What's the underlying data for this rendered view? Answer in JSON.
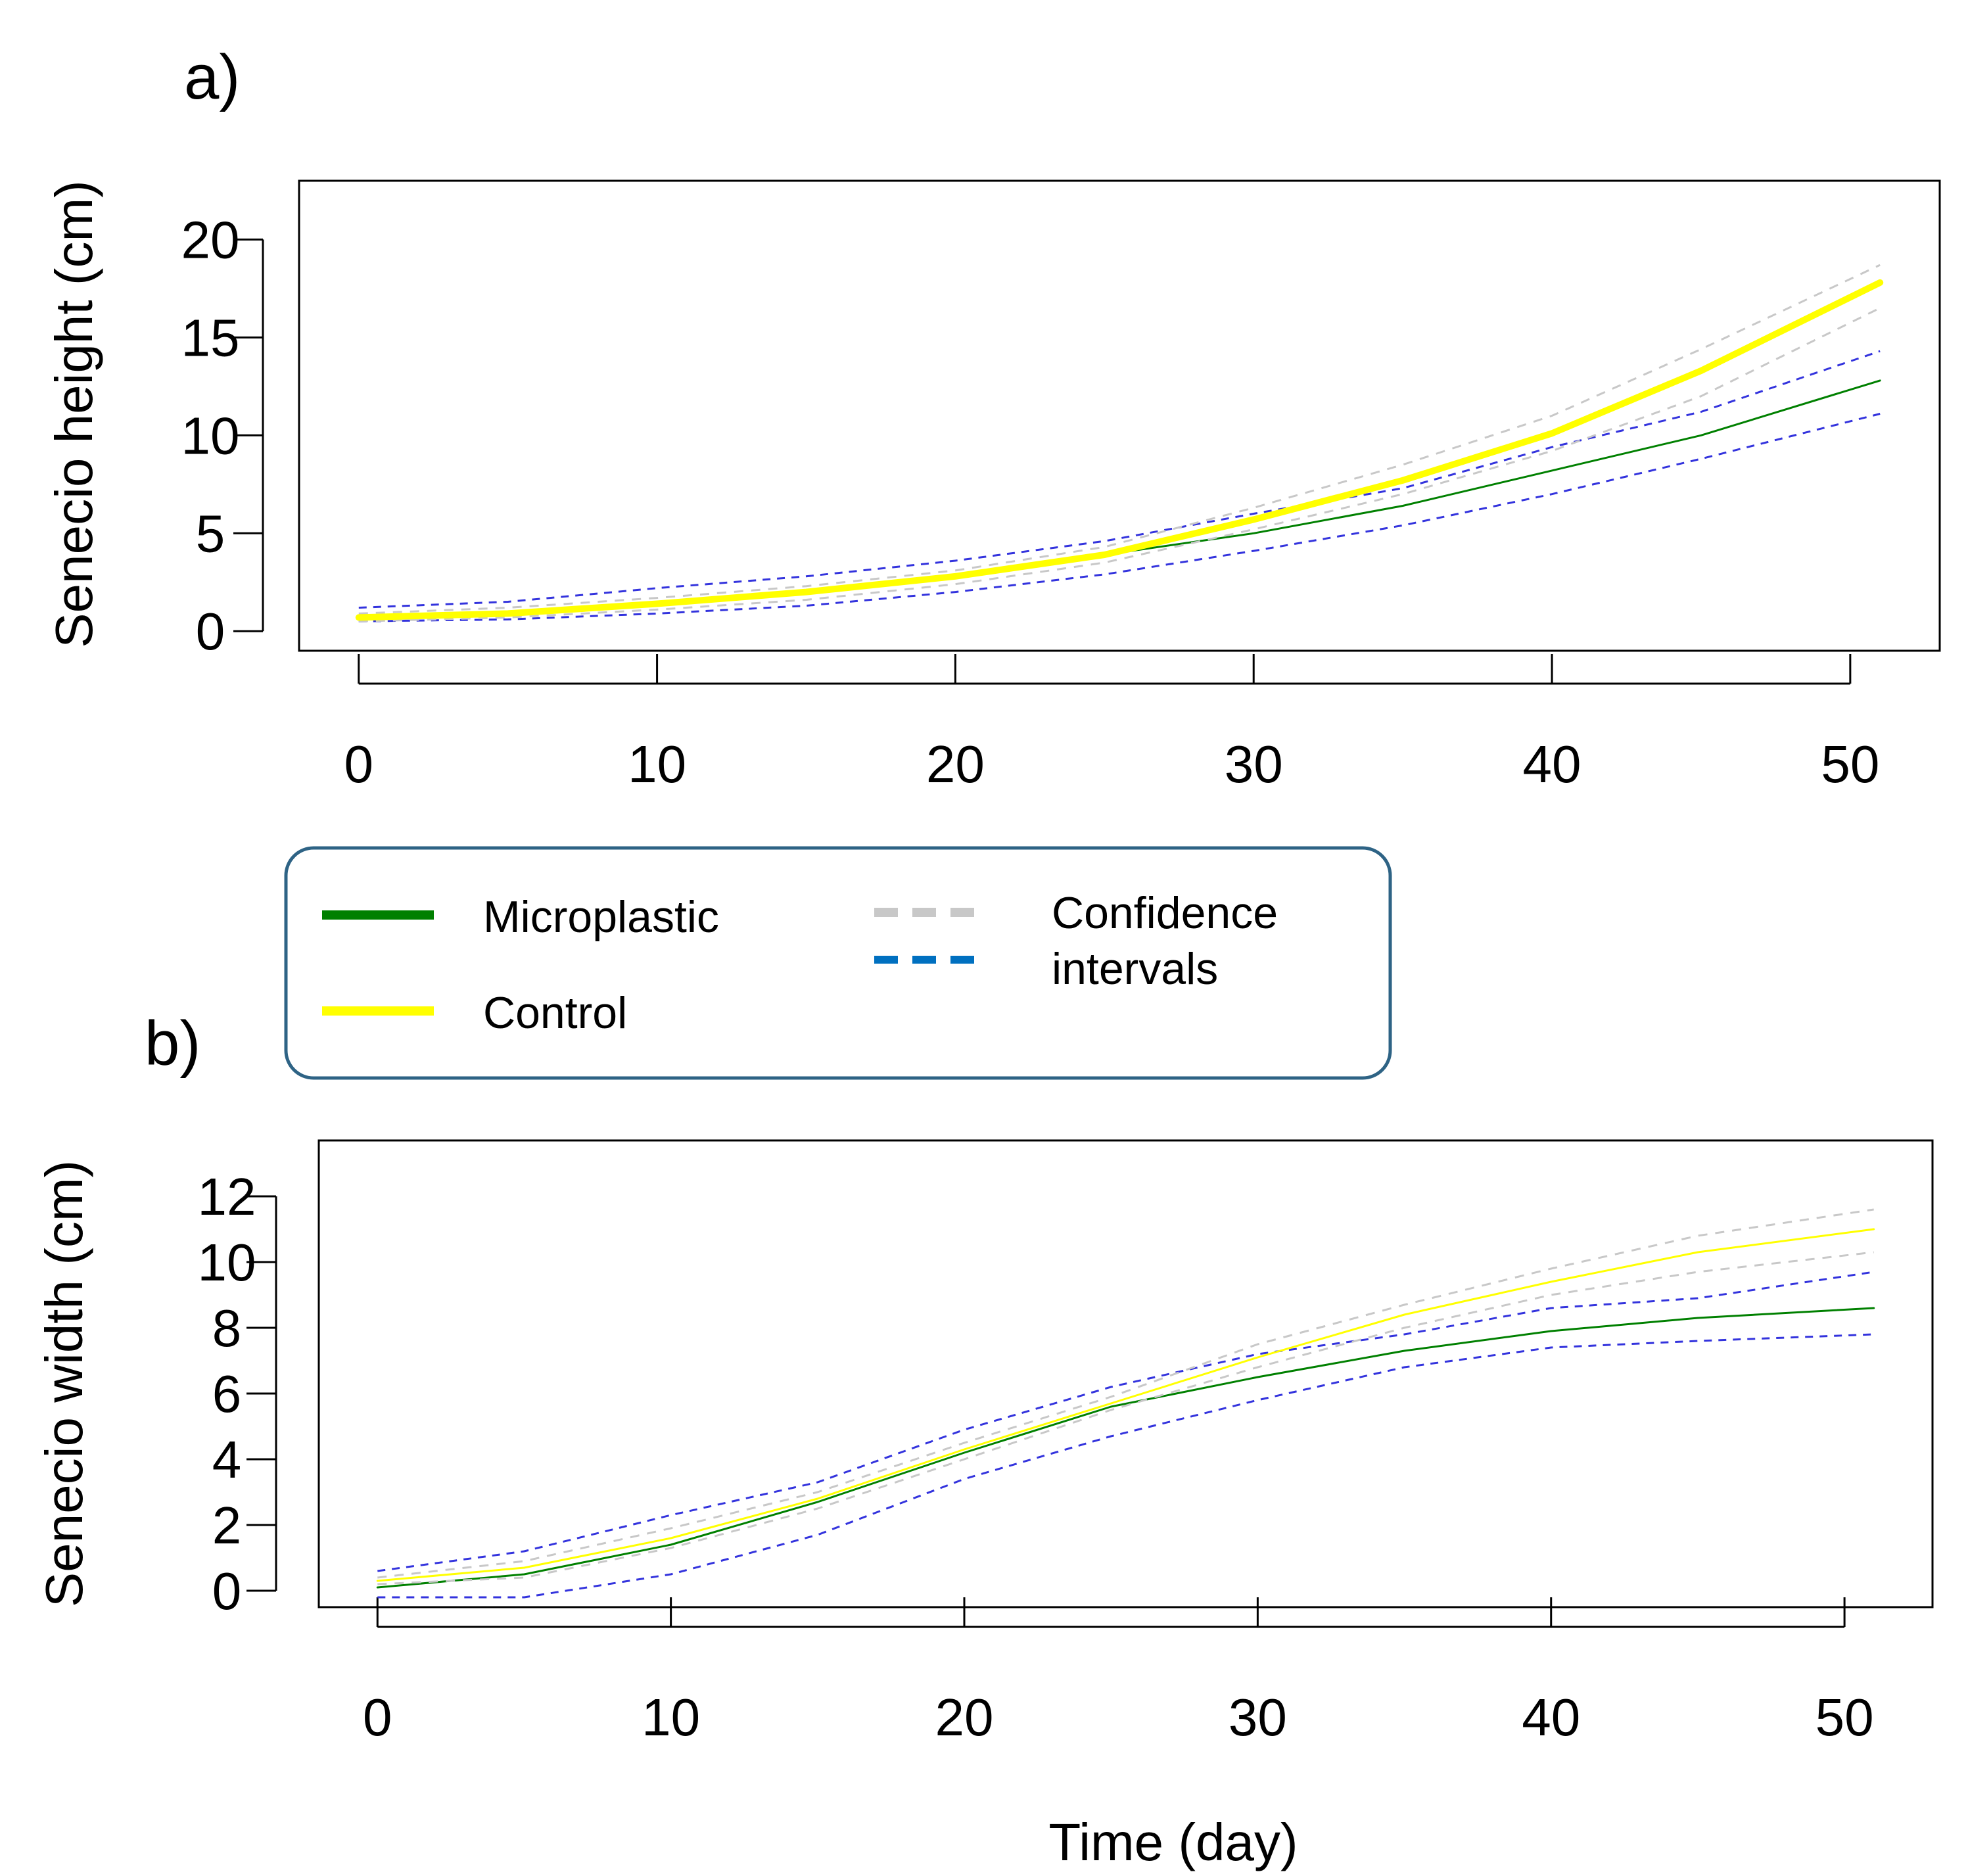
{
  "figure": {
    "xlabel": "Time (day)",
    "legend": {
      "items": [
        {
          "label": "Microplastic",
          "color": "#008000",
          "style": "solid"
        },
        {
          "label": "Control",
          "color": "#ffff00",
          "style": "solid"
        }
      ],
      "ci_label_line1": "Confidence",
      "ci_label_line2": "intervals",
      "ci_colors": [
        "#c8c8c8",
        "#0070c0"
      ]
    }
  },
  "chart_data": [
    {
      "type": "line",
      "panel_label": "a)",
      "title": "",
      "xlabel": "",
      "ylabel": "Senecio height (cm)",
      "xlim": [
        -2,
        53
      ],
      "ylim": [
        -1,
        23
      ],
      "xticks": [
        "0",
        "10",
        "20",
        "30",
        "40",
        "50"
      ],
      "yticks": [
        "0",
        "5",
        "10",
        "15",
        "20"
      ],
      "x": [
        0,
        5,
        10,
        15,
        20,
        25,
        30,
        35,
        40,
        45,
        51
      ],
      "series": [
        {
          "name": "Microplastic",
          "color": "#008000",
          "width": 3,
          "dash": "",
          "values": [
            0.7,
            1.0,
            1.4,
            2.0,
            2.9,
            3.9,
            5.0,
            6.4,
            8.2,
            10.0,
            12.8
          ]
        },
        {
          "name": "Microplastic lower CI",
          "color": "#3333dd",
          "width": 3,
          "dash": "12,10",
          "values": [
            0.5,
            0.6,
            0.9,
            1.3,
            2.0,
            2.9,
            4.1,
            5.4,
            7.0,
            8.8,
            11.1
          ]
        },
        {
          "name": "Microplastic upper CI",
          "color": "#3333dd",
          "width": 3,
          "dash": "12,10",
          "values": [
            1.2,
            1.5,
            2.2,
            2.8,
            3.6,
            4.6,
            6.0,
            7.3,
            9.4,
            11.2,
            14.3
          ]
        },
        {
          "name": "Control lower CI",
          "color": "#c8c8c8",
          "width": 3,
          "dash": "14,12",
          "values": [
            0.5,
            0.7,
            1.1,
            1.6,
            2.4,
            3.5,
            5.2,
            7.0,
            9.2,
            12.0,
            16.5
          ]
        },
        {
          "name": "Control upper CI",
          "color": "#c8c8c8",
          "width": 3,
          "dash": "14,12",
          "values": [
            0.9,
            1.2,
            1.7,
            2.3,
            3.1,
            4.3,
            6.3,
            8.5,
            11.0,
            14.4,
            18.7
          ]
        },
        {
          "name": "Control",
          "color": "#ffff00",
          "width": 10,
          "dash": "",
          "values": [
            0.7,
            0.9,
            1.4,
            2.0,
            2.8,
            3.9,
            5.7,
            7.7,
            10.1,
            13.3,
            17.8
          ]
        }
      ]
    },
    {
      "type": "line",
      "panel_label": "b)",
      "title": "",
      "xlabel": "Time (day)",
      "ylabel": "Senecio  width (cm)",
      "xlim": [
        -2,
        53
      ],
      "ylim": [
        -0.5,
        13.7
      ],
      "xticks": [
        "0",
        "10",
        "20",
        "30",
        "40",
        "50"
      ],
      "yticks": [
        "0",
        "2",
        "4",
        "6",
        "8",
        "10",
        "12"
      ],
      "x": [
        0,
        5,
        10,
        15,
        20,
        25,
        30,
        35,
        40,
        45,
        51
      ],
      "series": [
        {
          "name": "Microplastic",
          "color": "#008000",
          "width": 3,
          "dash": "",
          "values": [
            0.1,
            0.5,
            1.4,
            2.7,
            4.2,
            5.6,
            6.5,
            7.3,
            7.9,
            8.3,
            8.6
          ]
        },
        {
          "name": "Microplastic lower CI",
          "color": "#3333dd",
          "width": 3,
          "dash": "12,10",
          "values": [
            -0.2,
            -0.2,
            0.5,
            1.7,
            3.4,
            4.7,
            5.8,
            6.8,
            7.4,
            7.6,
            7.8
          ]
        },
        {
          "name": "Microplastic upper CI",
          "color": "#3333dd",
          "width": 3,
          "dash": "12,10",
          "values": [
            0.6,
            1.2,
            2.3,
            3.3,
            4.9,
            6.2,
            7.2,
            7.8,
            8.6,
            8.9,
            9.7
          ]
        },
        {
          "name": "Control lower CI",
          "color": "#c8c8c8",
          "width": 3,
          "dash": "14,12",
          "values": [
            0.2,
            0.4,
            1.3,
            2.5,
            4.0,
            5.5,
            6.8,
            8.0,
            9.0,
            9.7,
            10.3
          ]
        },
        {
          "name": "Control upper CI",
          "color": "#c8c8c8",
          "width": 3,
          "dash": "14,12",
          "values": [
            0.4,
            0.9,
            1.9,
            3.0,
            4.5,
            5.9,
            7.5,
            8.7,
            9.8,
            10.8,
            11.6
          ]
        },
        {
          "name": "Control",
          "color": "#ffff00",
          "width": 3,
          "dash": "",
          "values": [
            0.3,
            0.7,
            1.6,
            2.8,
            4.3,
            5.7,
            7.1,
            8.4,
            9.4,
            10.3,
            11.0
          ]
        }
      ]
    }
  ]
}
